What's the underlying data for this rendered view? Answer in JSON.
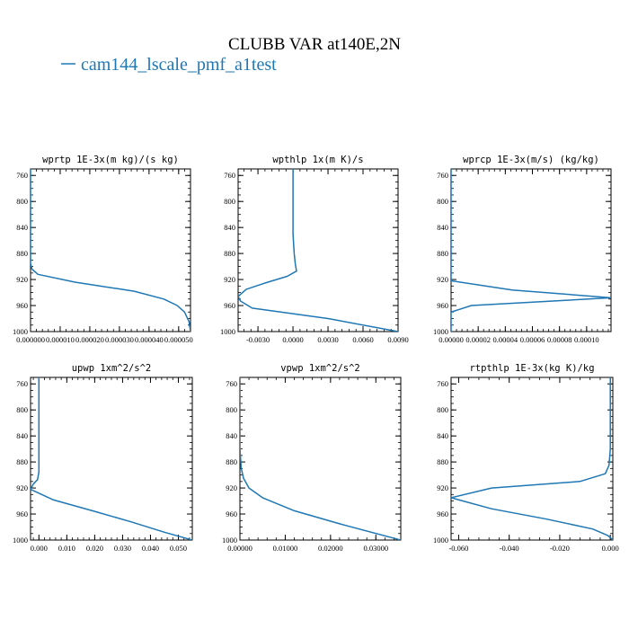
{
  "figure": {
    "title": "CLUBB VAR at140E,2N",
    "legend_label": "cam144_lscale_pmf_a1test",
    "line_color": "#1f77b4"
  },
  "chart_data": [
    {
      "type": "line",
      "title": "wprtp  1E-3x(m kg)/(s kg)",
      "ylim": [
        1000,
        750
      ],
      "yticks": [
        760,
        800,
        840,
        880,
        920,
        960,
        1000
      ],
      "xlim": [
        0.0,
        5.4e-05
      ],
      "xticks": [
        0.0,
        1e-05,
        2e-05,
        3e-05,
        4e-05,
        5e-05
      ],
      "xticklabels": [
        "0.000000",
        "0.000010",
        "0.000020",
        "0.000030",
        "0.000040",
        "0.000050"
      ],
      "series": [
        {
          "x": [
            0.0,
            0.0,
            0.0,
            0.0,
            0.0,
            5e-07,
            2.5e-06,
            1.5e-05,
            3.5e-05,
            4.5e-05,
            4.95e-05,
            5.2e-05,
            5.35e-05,
            5.4e-05
          ],
          "y": [
            750,
            800,
            850,
            880,
            895,
            904,
            912,
            924,
            938,
            950,
            960,
            970,
            985,
            1000
          ]
        }
      ]
    },
    {
      "type": "line",
      "title": "wpthlp  1x(m K)/s",
      "ylim": [
        1000,
        750
      ],
      "yticks": [
        760,
        800,
        840,
        880,
        920,
        960,
        1000
      ],
      "xlim": [
        -0.0047,
        0.009
      ],
      "xticks": [
        -0.003,
        0.0,
        0.003,
        0.006,
        0.009
      ],
      "xticklabels": [
        "-0.0030",
        "0.0000",
        "0.0030",
        "0.0060",
        "0.0090"
      ],
      "series": [
        {
          "x": [
            0.0,
            0.0,
            0.0,
            0.0001,
            0.0002,
            0.0003,
            -0.0005,
            -0.0025,
            -0.004,
            -0.0047,
            -0.0045,
            -0.0035,
            0.003,
            0.009
          ],
          "y": [
            750,
            800,
            850,
            880,
            897,
            907,
            915,
            926,
            935,
            946,
            953,
            964,
            980,
            1000
          ]
        }
      ]
    },
    {
      "type": "line",
      "title": "wprcp  1E-3x(m/s) (kg/kg)",
      "ylim": [
        1000,
        750
      ],
      "yticks": [
        760,
        800,
        840,
        880,
        920,
        960,
        1000
      ],
      "xlim": [
        0.0,
        0.000118
      ],
      "xticks": [
        0.0,
        2e-05,
        4e-05,
        6e-05,
        8e-05,
        0.0001
      ],
      "xticklabels": [
        "0.00000",
        "0.00002",
        "0.00004",
        "0.00006",
        "0.00008",
        "0.00010"
      ],
      "series": [
        {
          "x": [
            0.0,
            0.0,
            0.0,
            0.0,
            4.5e-05,
            0.000118,
            1.5e-05,
            0.0,
            0.0
          ],
          "y": [
            750,
            850,
            910,
            922,
            936,
            948,
            960,
            970,
            1000
          ]
        }
      ]
    },
    {
      "type": "line",
      "title": "upwp  1xm^2/s^2",
      "ylim": [
        1000,
        750
      ],
      "yticks": [
        760,
        800,
        840,
        880,
        920,
        960,
        1000
      ],
      "xlim": [
        -0.003,
        0.055
      ],
      "xticks": [
        0.0,
        0.01,
        0.02,
        0.03,
        0.04,
        0.05
      ],
      "xticklabels": [
        "0.000",
        "0.010",
        "0.020",
        "0.030",
        "0.040",
        "0.050"
      ],
      "series": [
        {
          "x": [
            0.0,
            0.0,
            0.0,
            0.0,
            -0.0005,
            -0.002,
            -0.003,
            0.005,
            0.02,
            0.033,
            0.045,
            0.055
          ],
          "y": [
            750,
            800,
            850,
            895,
            907,
            914,
            922,
            938,
            956,
            972,
            988,
            1000
          ]
        }
      ]
    },
    {
      "type": "line",
      "title": "vpwp  1xm^2/s^2",
      "ylim": [
        1000,
        750
      ],
      "yticks": [
        760,
        800,
        840,
        880,
        920,
        960,
        1000
      ],
      "xlim": [
        0.0,
        0.0355
      ],
      "xticks": [
        0.0,
        0.01,
        0.02,
        0.03
      ],
      "xticklabels": [
        "0.00000",
        "0.01000",
        "0.02000",
        "0.03000"
      ],
      "series": [
        {
          "x": [
            0.0,
            0.0,
            0.0,
            0.0003,
            0.0008,
            0.002,
            0.005,
            0.012,
            0.022,
            0.0355
          ],
          "y": [
            750,
            800,
            860,
            890,
            905,
            920,
            935,
            955,
            975,
            1000
          ]
        }
      ]
    },
    {
      "type": "line",
      "title": "rtpthlp  1E-3x(kg K)/kg",
      "ylim": [
        1000,
        750
      ],
      "yticks": [
        760,
        800,
        840,
        880,
        920,
        960,
        1000
      ],
      "xlim": [
        -0.063,
        0.001
      ],
      "xticks": [
        -0.06,
        -0.04,
        -0.02,
        0.0
      ],
      "xticklabels": [
        "-0.060",
        "-0.040",
        "-0.020",
        "0.000"
      ],
      "series": [
        {
          "x": [
            0.0,
            0.0,
            0.0,
            -0.0005,
            -0.002,
            -0.012,
            -0.047,
            -0.063,
            -0.047,
            -0.025,
            -0.007,
            -0.001,
            0.001
          ],
          "y": [
            750,
            800,
            860,
            885,
            898,
            910,
            920,
            935,
            952,
            968,
            983,
            993,
            1000
          ]
        }
      ]
    }
  ]
}
